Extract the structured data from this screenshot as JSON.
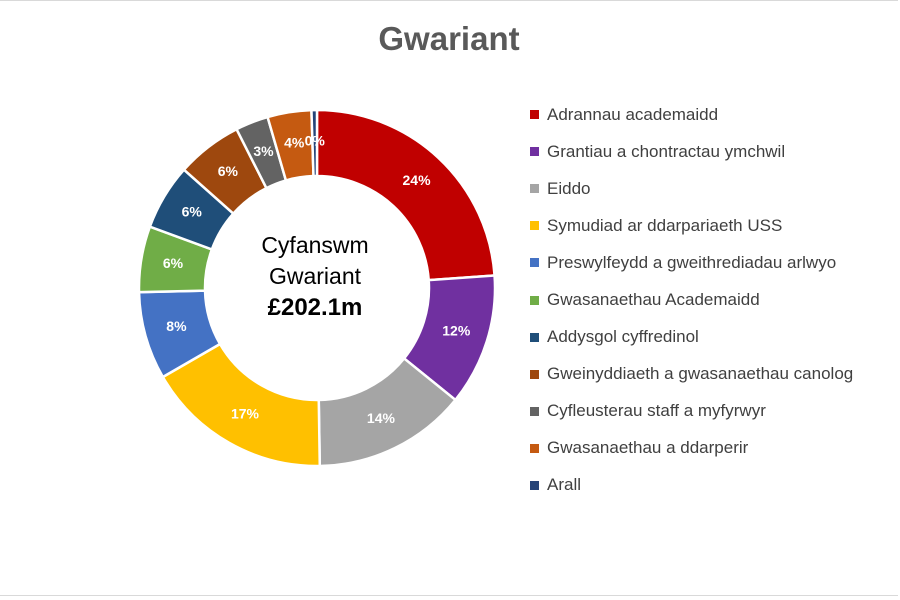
{
  "chart_data": {
    "type": "donut",
    "title": "Gwariant",
    "center_text": {
      "line1": "Cyfanswm",
      "line2": "Gwariant",
      "total": "£202.1m"
    },
    "legend_position": "right",
    "series": [
      {
        "name": "Adrannau academaidd",
        "value": 24,
        "label": "24%",
        "color": "#C00000"
      },
      {
        "name": "Grantiau a chontractau ymchwil",
        "value": 12,
        "label": "12%",
        "color": "#7030A0"
      },
      {
        "name": "Eiddo",
        "value": 14,
        "label": "14%",
        "color": "#A5A5A5"
      },
      {
        "name": "Symudiad ar ddarpariaeth USS",
        "value": 17,
        "label": "17%",
        "color": "#FFC000"
      },
      {
        "name": "Preswylfeydd a gweithrediadau arlwyo",
        "value": 8,
        "label": "8%",
        "color": "#4472C4"
      },
      {
        "name": "Gwasanaethau Academaidd",
        "value": 6,
        "label": "6%",
        "color": "#70AD47"
      },
      {
        "name": "Addysgol cyffredinol",
        "value": 6,
        "label": "6%",
        "color": "#1F4E79"
      },
      {
        "name": "Gweinyddiaeth a gwasanaethau canolog",
        "value": 6,
        "label": "6%",
        "color": "#9E480E"
      },
      {
        "name": "Cyfleusterau staff a myfyrwyr",
        "value": 3,
        "label": "3%",
        "color": "#636363"
      },
      {
        "name": "Gwasanaethau a ddarperir",
        "value": 4,
        "label": "4%",
        "color": "#C55A11"
      },
      {
        "name": "Arall",
        "value": 0.5,
        "label": "0%",
        "color": "#264478"
      }
    ]
  }
}
